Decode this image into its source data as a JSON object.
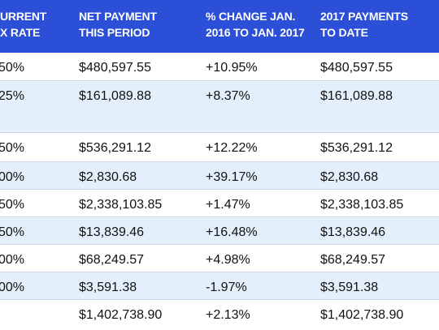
{
  "headers": [
    "URRENT\nX RATE",
    "NET PAYMENT\nTHIS PERIOD",
    "% CHANGE JAN.\n2016 TO JAN. 2017",
    "2017 PAYMENTS\nTO DATE"
  ],
  "rows": [
    [
      "50%",
      "$480,597.55",
      "+10.95%",
      "$480,597.55"
    ],
    [
      "25%",
      "$161,089.88",
      "+8.37%",
      "$161,089.88"
    ],
    [
      "50%",
      "$536,291.12",
      "+12.22%",
      "$536,291.12"
    ],
    [
      "00%",
      "$2,830.68",
      "+39.17%",
      "$2,830.68"
    ],
    [
      "50%",
      "$2,338,103.85",
      "+1.47%",
      "$2,338,103.85"
    ],
    [
      "50%",
      "$13,839.46",
      "+16.48%",
      "$13,839.46"
    ],
    [
      "00%",
      "$68,249.57",
      "+4.98%",
      "$68,249.57"
    ],
    [
      "00%",
      "$3,591.38",
      "-1.97%",
      "$3,591.38"
    ],
    [
      "",
      "$1,402,738.90",
      "+2.13%",
      "$1,402,738.90"
    ]
  ],
  "colors": {
    "header_bg": "#2b4fd6",
    "header_text": "#ffffff",
    "row_shade": "#e3f0fb",
    "row_plain": "#ffffff",
    "divider": "#cfd6e6"
  }
}
